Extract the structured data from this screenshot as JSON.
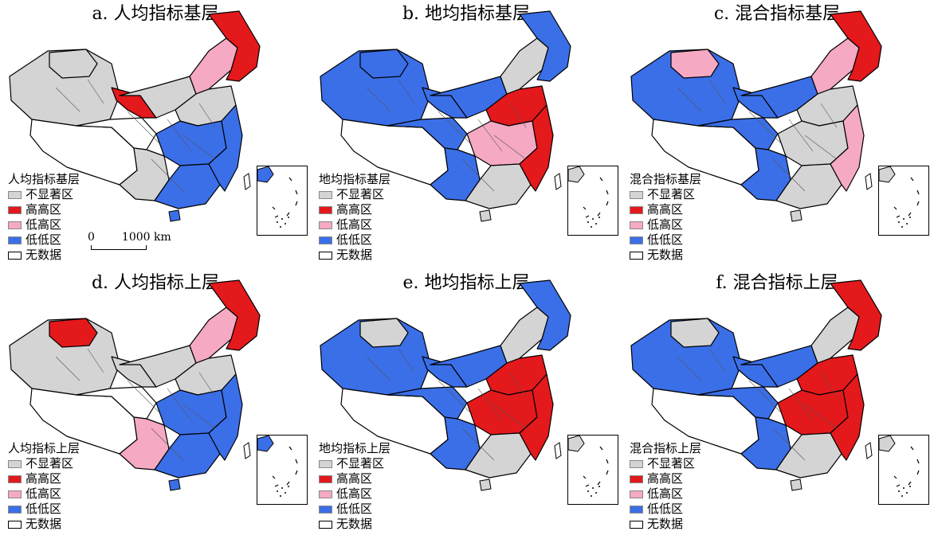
{
  "colors": {
    "not_significant": "#d4d4d4",
    "high_high": "#e3191c",
    "low_high": "#f5a9c3",
    "low_low": "#3b6fe8",
    "no_data": "#ffffff",
    "boundary": "#000000"
  },
  "scale": {
    "zero": "0",
    "length": "1000 km"
  },
  "legend_items": [
    "不显著区",
    "高高区",
    "低高区",
    "低低区",
    "无数据"
  ],
  "panels": [
    {
      "id": "a",
      "title": "a. 人均指标基层",
      "legend_title": "人均指标基层",
      "regions": {
        "northwest": "not_significant",
        "xinjiang_north": "not_significant",
        "tibet": "no_data",
        "qinghai": "no_data",
        "gansu": "high_high",
        "inner_mongolia_west": "not_significant",
        "inner_mongolia_east": "low_high",
        "northeast": "high_high",
        "north_china": "not_significant",
        "central": "low_low",
        "southwest": "not_significant",
        "south": "low_low",
        "east_coast": "low_low"
      }
    },
    {
      "id": "b",
      "title": "b. 地均指标基层",
      "legend_title": "地均指标基层",
      "regions": {
        "northwest": "low_low",
        "xinjiang_north": "low_low",
        "tibet": "no_data",
        "qinghai": "low_low",
        "gansu": "low_low",
        "inner_mongolia_west": "low_low",
        "inner_mongolia_east": "not_significant",
        "northeast": "low_low",
        "north_china": "high_high",
        "central": "low_high",
        "southwest": "low_low",
        "south": "not_significant",
        "east_coast": "high_high"
      }
    },
    {
      "id": "c",
      "title": "c. 混合指标基层",
      "legend_title": "混合指标基层",
      "regions": {
        "northwest": "low_low",
        "xinjiang_north": "low_high",
        "tibet": "no_data",
        "qinghai": "low_low",
        "gansu": "low_low",
        "inner_mongolia_west": "low_low",
        "inner_mongolia_east": "low_high",
        "northeast": "high_high",
        "north_china": "not_significant",
        "central": "not_significant",
        "southwest": "low_low",
        "south": "not_significant",
        "east_coast": "low_high"
      }
    },
    {
      "id": "d",
      "title": "d. 人均指标上层",
      "legend_title": "人均指标上层",
      "regions": {
        "northwest": "not_significant",
        "xinjiang_north": "high_high",
        "tibet": "no_data",
        "qinghai": "no_data",
        "gansu": "not_significant",
        "inner_mongolia_west": "not_significant",
        "inner_mongolia_east": "low_high",
        "northeast": "high_high",
        "north_china": "not_significant",
        "central": "low_low",
        "southwest": "low_high",
        "south": "low_low",
        "east_coast": "low_low"
      }
    },
    {
      "id": "e",
      "title": "e. 地均指标上层",
      "legend_title": "地均指标上层",
      "regions": {
        "northwest": "low_low",
        "xinjiang_north": "not_significant",
        "tibet": "no_data",
        "qinghai": "low_low",
        "gansu": "low_low",
        "inner_mongolia_west": "low_low",
        "inner_mongolia_east": "not_significant",
        "northeast": "low_low",
        "north_china": "high_high",
        "central": "high_high",
        "southwest": "low_low",
        "south": "not_significant",
        "east_coast": "high_high"
      }
    },
    {
      "id": "f",
      "title": "f. 混合指标上层",
      "legend_title": "混合指标上层",
      "regions": {
        "northwest": "low_low",
        "xinjiang_north": "not_significant",
        "tibet": "no_data",
        "qinghai": "low_low",
        "gansu": "low_low",
        "inner_mongolia_west": "low_low",
        "inner_mongolia_east": "not_significant",
        "northeast": "high_high",
        "north_china": "high_high",
        "central": "high_high",
        "southwest": "low_low",
        "south": "not_significant",
        "east_coast": "high_high"
      }
    }
  ]
}
